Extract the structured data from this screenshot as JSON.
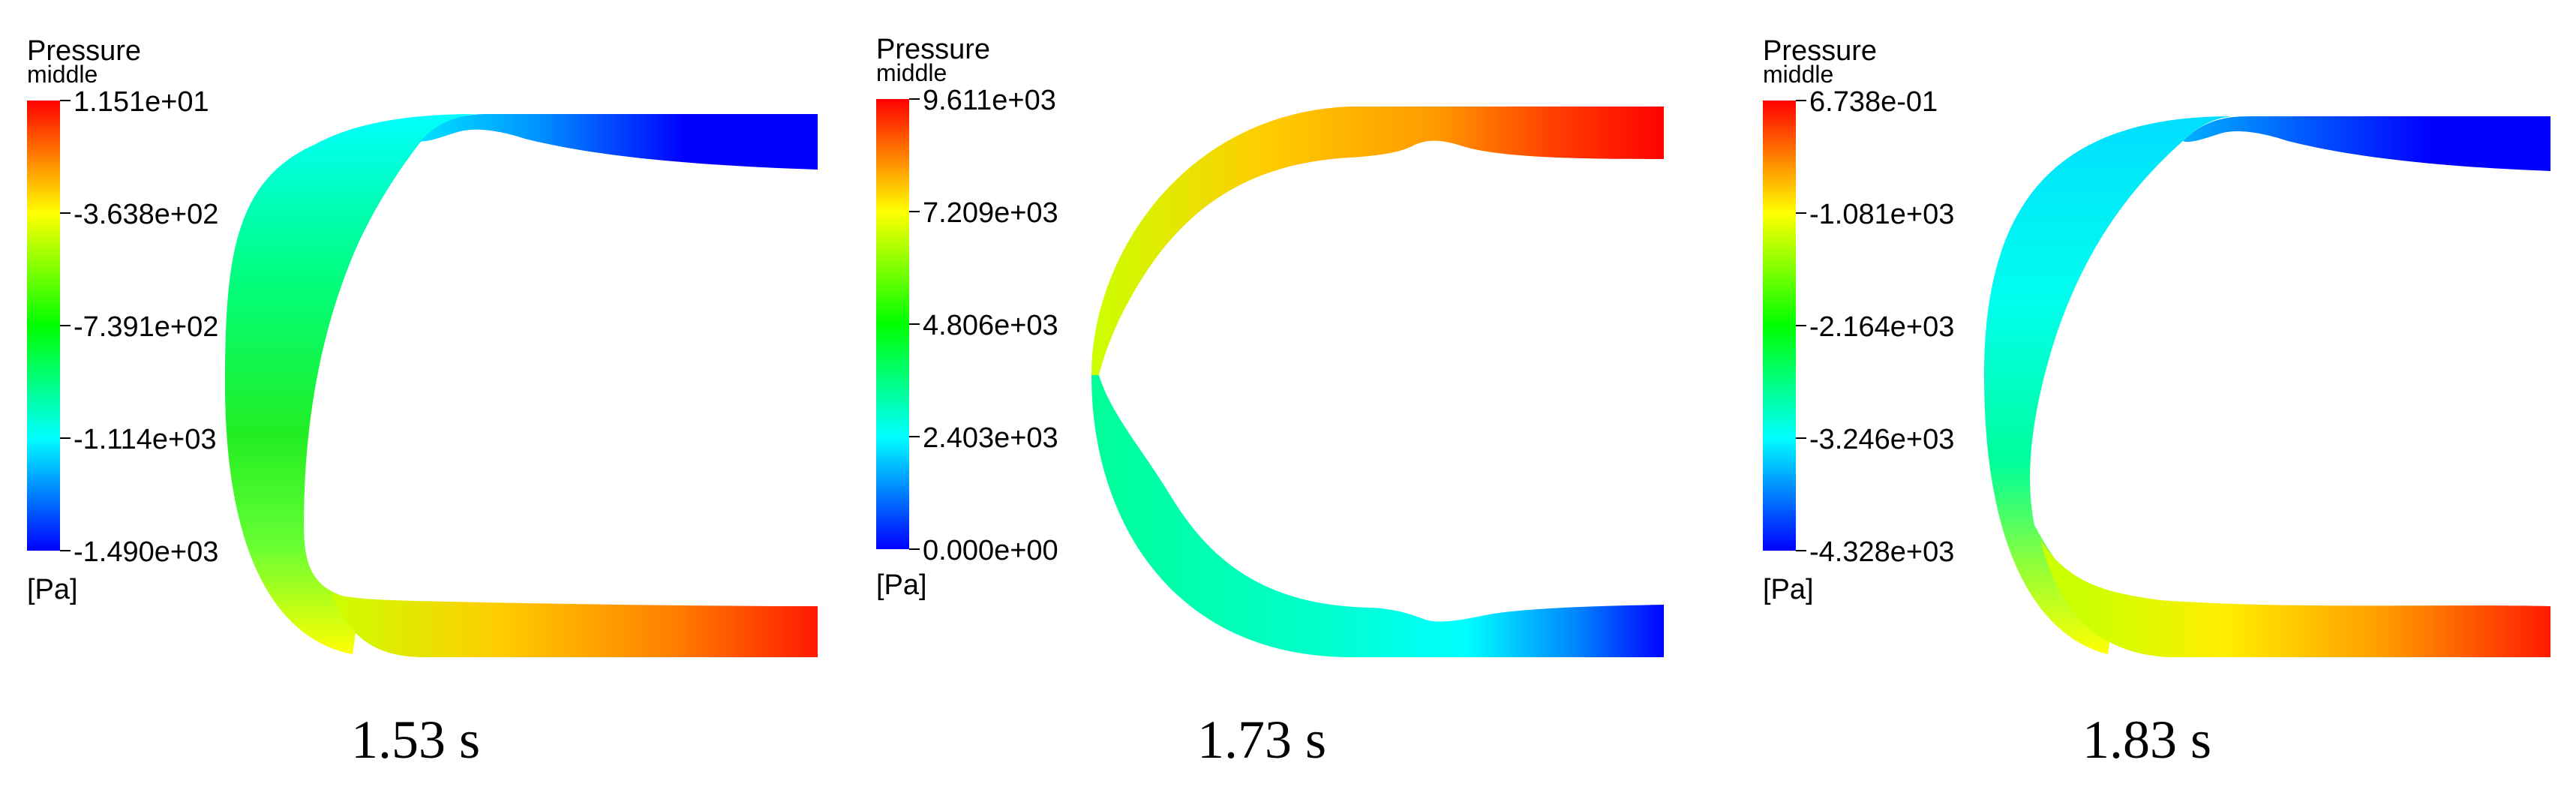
{
  "panels": [
    {
      "legend_title": "Pressure",
      "legend_subtitle": "middle",
      "ticks": [
        "1.151e+01",
        "-3.638e+02",
        "-7.391e+02",
        "-1.114e+03",
        "-1.490e+03"
      ],
      "unit": "[Pa]",
      "time_label": "1.53 s"
    },
    {
      "legend_title": "Pressure",
      "legend_subtitle": "middle",
      "ticks": [
        "9.611e+03",
        "7.209e+03",
        "4.806e+03",
        "2.403e+03",
        "0.000e+00"
      ],
      "unit": "[Pa]",
      "time_label": "1.73 s"
    },
    {
      "legend_title": "Pressure",
      "legend_subtitle": "middle",
      "ticks": [
        "6.738e-01",
        "-1.081e+03",
        "-2.164e+03",
        "-3.246e+03",
        "-4.328e+03"
      ],
      "unit": "[Pa]",
      "time_label": "1.83 s"
    }
  ],
  "colormap": [
    "#0000ff",
    "#00ffff",
    "#00ff00",
    "#ffff00",
    "#ff0000"
  ]
}
